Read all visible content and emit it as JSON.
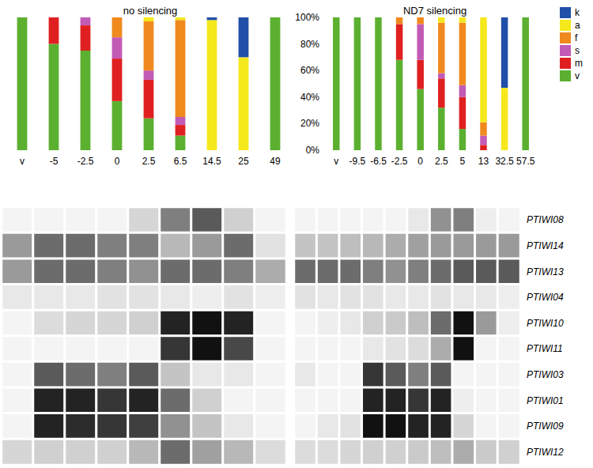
{
  "chart_data": [
    {
      "type": "bar",
      "title": "no silencing",
      "stacked": true,
      "tick_labels": "x",
      "categories": [
        "v",
        "-5",
        "-2.5",
        "0",
        "2.5",
        "6.5",
        "14.5",
        "25",
        "49"
      ],
      "ylim": [
        0,
        100
      ],
      "series": [
        {
          "name": "v",
          "color": "#5cb030",
          "values": [
            100,
            80,
            75,
            37,
            24,
            11,
            0,
            0,
            100
          ]
        },
        {
          "name": "m",
          "color": "#e02020",
          "values": [
            0,
            20,
            19,
            32,
            29,
            8,
            0,
            0,
            0
          ]
        },
        {
          "name": "s",
          "color": "#c25bb5",
          "values": [
            0,
            0,
            6,
            16,
            7,
            6,
            0,
            0,
            0
          ]
        },
        {
          "name": "f",
          "color": "#f08a1e",
          "values": [
            0,
            0,
            0,
            15,
            37,
            73,
            0,
            0,
            0
          ]
        },
        {
          "name": "a",
          "color": "#f5e81c",
          "values": [
            0,
            0,
            0,
            0,
            3,
            2,
            98,
            70,
            0
          ]
        },
        {
          "name": "k",
          "color": "#1f4fa8",
          "values": [
            0,
            0,
            0,
            0,
            0,
            0,
            2,
            30,
            0
          ]
        }
      ]
    },
    {
      "type": "bar",
      "title": "ND7 silencing",
      "stacked": true,
      "legend": "right",
      "categories": [
        "v",
        "-9.5",
        "-6.5",
        "-2.5",
        "0",
        "2.5",
        "5",
        "13",
        "32.5",
        "57.5"
      ],
      "ylim": [
        0,
        100
      ],
      "yticks": [
        {
          "value": 0,
          "label": "0%"
        },
        {
          "value": 20,
          "label": "20%"
        },
        {
          "value": 40,
          "label": "40%"
        },
        {
          "value": 60,
          "label": "60%"
        },
        {
          "value": 80,
          "label": "80%"
        },
        {
          "value": 100,
          "label": "100%"
        }
      ],
      "series": [
        {
          "name": "v",
          "color": "#5cb030",
          "values": [
            100,
            100,
            100,
            68,
            46,
            32,
            16,
            0,
            0,
            100
          ]
        },
        {
          "name": "m",
          "color": "#e02020",
          "values": [
            0,
            0,
            0,
            27,
            22,
            22,
            24,
            4,
            0,
            0
          ]
        },
        {
          "name": "s",
          "color": "#c25bb5",
          "values": [
            0,
            0,
            0,
            0,
            27,
            4,
            9,
            7,
            0,
            0
          ]
        },
        {
          "name": "f",
          "color": "#f08a1e",
          "values": [
            0,
            0,
            0,
            5,
            5,
            38,
            47,
            10,
            0,
            0
          ]
        },
        {
          "name": "a",
          "color": "#f5e81c",
          "values": [
            0,
            0,
            0,
            0,
            0,
            4,
            4,
            79,
            47,
            0
          ]
        },
        {
          "name": "k",
          "color": "#1f4fa8",
          "values": [
            0,
            0,
            0,
            0,
            0,
            0,
            0,
            0,
            53,
            0
          ]
        }
      ]
    },
    {
      "type": "heatmap",
      "tick_labels": false,
      "categories": [
        "v",
        "-5",
        "-2.5",
        "0",
        "2.5",
        "6.5",
        "14.5",
        "25",
        "49"
      ],
      "rows": [
        "PTIWI08",
        "PTIWI14",
        "PTIWI13",
        "PTIWI04",
        "PTIWI10",
        "PTIWI11",
        "PTIWI03",
        "PTIWI01",
        "PTIWI09",
        "PTIWI12"
      ],
      "zlim": [
        0,
        3
      ],
      "cells": [
        [
          0,
          0,
          0,
          0,
          0.5,
          1.8,
          2.2,
          0.6,
          0
        ],
        [
          1.5,
          2,
          2,
          1.8,
          1.8,
          1,
          1.5,
          2,
          0.3
        ],
        [
          1.5,
          2,
          2,
          1.8,
          1.6,
          2,
          2,
          1.8,
          1.2
        ],
        [
          0.2,
          0.2,
          0.2,
          0.3,
          0.3,
          0.2,
          0.1,
          0.3,
          0.1
        ],
        [
          0,
          0.4,
          0.5,
          0.5,
          0.6,
          2.8,
          3,
          2.8,
          0
        ],
        [
          0,
          0,
          0,
          0,
          0,
          2.6,
          3,
          2.4,
          0
        ],
        [
          0,
          2.2,
          2,
          1.8,
          2.2,
          0.8,
          0.2,
          0.2,
          0
        ],
        [
          0,
          2.8,
          2.8,
          2.6,
          2.8,
          2,
          0.6,
          0,
          0
        ],
        [
          0,
          2.8,
          2.7,
          2.6,
          2.5,
          1.6,
          0.8,
          0.2,
          0
        ],
        [
          0.5,
          0.6,
          0.6,
          0.6,
          1,
          2,
          1.4,
          1,
          0.4
        ]
      ]
    },
    {
      "type": "heatmap",
      "tick_labels": "y",
      "categories": [
        "v",
        "-9.5",
        "-6.5",
        "-2.5",
        "0",
        "2.5",
        "5",
        "13",
        "32.5",
        "57.5"
      ],
      "rows": [
        "PTIWI08",
        "PTIWI14",
        "PTIWI13",
        "PTIWI04",
        "PTIWI10",
        "PTIWI11",
        "PTIWI03",
        "PTIWI01",
        "PTIWI09",
        "PTIWI12"
      ],
      "zlim": [
        0,
        3
      ],
      "cells": [
        [
          0,
          0,
          0,
          0,
          0,
          0.2,
          1.6,
          1.8,
          0.1,
          0
        ],
        [
          0.8,
          0.8,
          0.9,
          1,
          1.2,
          1.4,
          1.5,
          1.5,
          1.5,
          1.5
        ],
        [
          2,
          2,
          2,
          1.8,
          1.6,
          1.8,
          2,
          2.2,
          2.2,
          2.2
        ],
        [
          0.3,
          0.2,
          0.3,
          0.3,
          0.2,
          0.2,
          0.3,
          0.2,
          0.2,
          0.1
        ],
        [
          0,
          0.1,
          0.2,
          0.6,
          0.7,
          0.9,
          2,
          3,
          1.5,
          0.1
        ],
        [
          0,
          0,
          0,
          0.2,
          0.3,
          0.4,
          1.2,
          3,
          0,
          0
        ],
        [
          0.2,
          0,
          0,
          2.6,
          2.2,
          1.8,
          2.2,
          0,
          0,
          0
        ],
        [
          0,
          0,
          0,
          2.8,
          2.8,
          2.6,
          2.8,
          0.1,
          0,
          0
        ],
        [
          0,
          0.2,
          0.3,
          3,
          3,
          2.8,
          2.8,
          0.5,
          0,
          0
        ],
        [
          0.4,
          0.4,
          0.5,
          0.6,
          0.6,
          0.7,
          0.9,
          1.2,
          0.7,
          0.6
        ]
      ]
    }
  ]
}
